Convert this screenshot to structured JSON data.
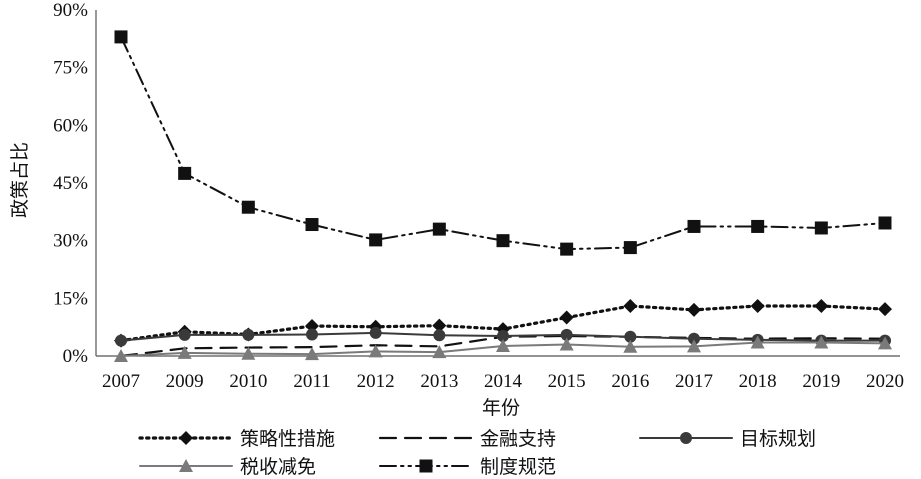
{
  "chart_data": {
    "type": "line",
    "title": "",
    "xlabel": "年份",
    "ylabel": "政策占比",
    "categories": [
      "2007",
      "2009",
      "2010",
      "2011",
      "2012",
      "2013",
      "2014",
      "2015",
      "2016",
      "2017",
      "2018",
      "2019",
      "2020"
    ],
    "y_ticks": [
      "0%",
      "15%",
      "30%",
      "45%",
      "60%",
      "75%",
      "90%"
    ],
    "ylim": [
      0,
      90
    ],
    "y_unit": "%",
    "grid": false,
    "legend_position": "bottom",
    "series": [
      {
        "name": "策略性措施",
        "values": [
          4.0,
          6.3,
          5.6,
          7.8,
          7.6,
          7.9,
          7.0,
          10.0,
          13.0,
          12.0,
          13.0,
          13.0,
          12.2
        ],
        "style": "dotted",
        "marker": "diamond",
        "color": "#111111"
      },
      {
        "name": "金融支持",
        "values": [
          0.0,
          2.0,
          2.2,
          2.3,
          2.8,
          2.5,
          5.0,
          5.2,
          5.0,
          4.7,
          4.5,
          4.6,
          4.5
        ],
        "style": "dashed",
        "marker": "none",
        "color": "#111111"
      },
      {
        "name": "目标规划",
        "values": [
          4.0,
          5.5,
          5.5,
          5.6,
          6.0,
          5.4,
          5.2,
          5.5,
          5.0,
          4.5,
          4.2,
          4.0,
          4.0
        ],
        "style": "solid",
        "marker": "circle",
        "color": "#3a3a3a"
      },
      {
        "name": "税收减免",
        "values": [
          0.0,
          0.8,
          0.6,
          0.5,
          1.2,
          1.0,
          2.6,
          3.0,
          2.4,
          2.5,
          3.5,
          3.5,
          3.3
        ],
        "style": "solid",
        "marker": "triangle",
        "color": "#7a7a7a"
      },
      {
        "name": "制度规范",
        "values": [
          83.0,
          47.5,
          38.7,
          34.2,
          30.2,
          33.0,
          30.0,
          27.8,
          28.2,
          33.7,
          33.7,
          33.3,
          34.6
        ],
        "style": "dash-dot-dot",
        "marker": "square",
        "color": "#111111"
      }
    ]
  }
}
